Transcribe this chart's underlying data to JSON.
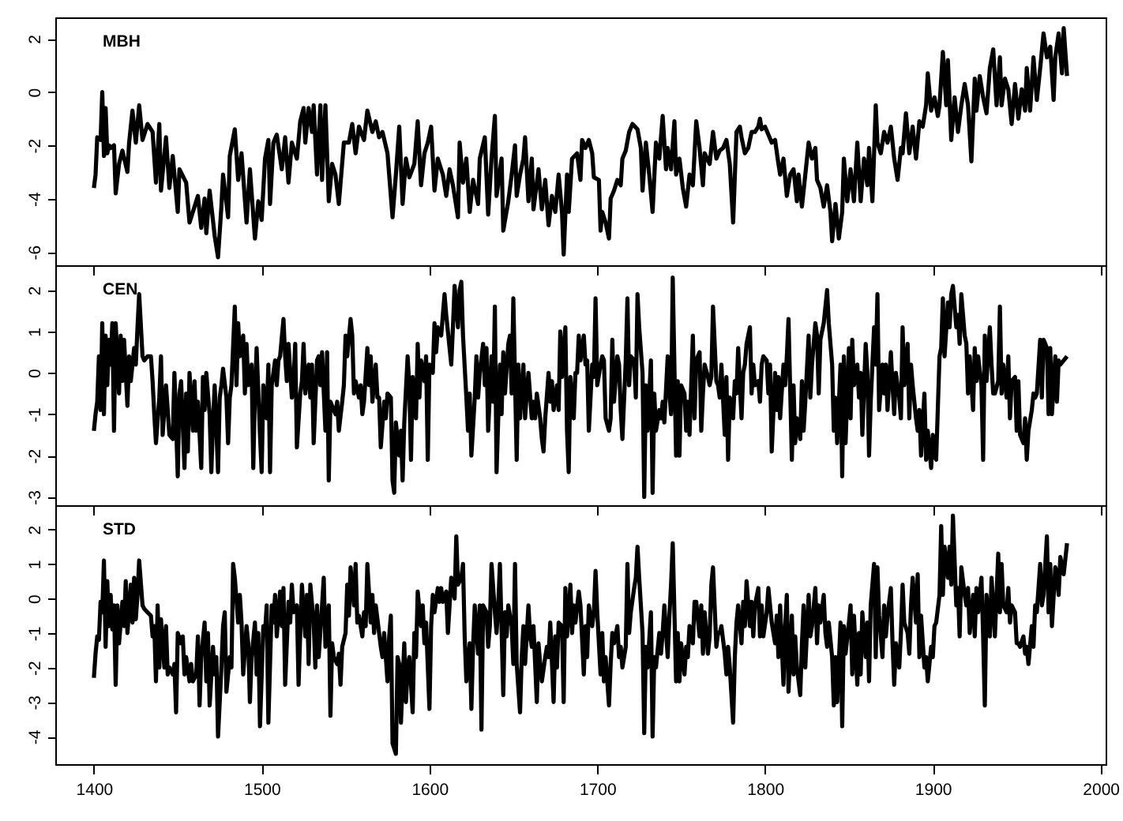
{
  "chart_data": [
    {
      "type": "line",
      "title": "MBH",
      "color": "#000000",
      "xlim": [
        1377,
        2003
      ],
      "xticks": [
        1400,
        1500,
        1600,
        1700,
        1800,
        1900,
        2000
      ],
      "ylim": [
        -6.5,
        2.8
      ],
      "yticks": [
        -6,
        -4,
        -2,
        0,
        2
      ],
      "tick_labels": "y",
      "x": [
        1400,
        1401,
        1402,
        1404,
        1405,
        1406,
        1407,
        1408,
        1409,
        1410,
        1412,
        1413,
        1415,
        1417,
        1420,
        1421,
        1423,
        1425,
        1427,
        1429,
        1432,
        1435,
        1437,
        1439,
        1440,
        1443,
        1445,
        1447,
        1450,
        1451,
        1455,
        1457,
        1459,
        1462,
        1464,
        1466,
        1467,
        1469,
        1472,
        1474,
        1476,
        1477,
        1480,
        1481,
        1484,
        1486,
        1488,
        1491,
        1493,
        1496,
        1498,
        1500,
        1502,
        1504,
        1505,
        1507,
        1509,
        1512,
        1514,
        1516,
        1518,
        1521,
        1523,
        1525,
        1526,
        1528,
        1530,
        1531,
        1533,
        1535,
        1536,
        1538,
        1540,
        1542,
        1544,
        1546,
        1549,
        1552,
        1554,
        1556,
        1558,
        1561,
        1563,
        1566,
        1568,
        1570,
        1572,
        1575,
        1578,
        1580,
        1582,
        1584,
        1586,
        1588,
        1591,
        1593,
        1595,
        1597,
        1599,
        1601,
        1603,
        1605,
        1608,
        1610,
        1612,
        1614,
        1617,
        1618,
        1620,
        1622,
        1624,
        1626,
        1629,
        1630,
        1633,
        1635,
        1637,
        1639,
        1640,
        1643,
        1644,
        1647,
        1649,
        1651,
        1652,
        1654,
        1656,
        1657,
        1659,
        1661,
        1662,
        1665,
        1667,
        1669,
        1671,
        1673,
        1675,
        1677,
        1679,
        1680,
        1682,
        1683,
        1685,
        1688,
        1690,
        1691,
        1693,
        1695,
        1697,
        1698,
        1701,
        1702,
        1703,
        1705,
        1707,
        1708,
        1710,
        1712,
        1714,
        1715,
        1717,
        1719,
        1721,
        1724,
        1726,
        1727,
        1729,
        1731,
        1733,
        1735,
        1737,
        1739,
        1741,
        1742,
        1744,
        1746,
        1747,
        1749,
        1751,
        1753,
        1755,
        1757,
        1759,
        1761,
        1763,
        1764,
        1767,
        1769,
        1771,
        1773,
        1775,
        1777,
        1779,
        1781,
        1783,
        1785,
        1786,
        1788,
        1790,
        1792,
        1794,
        1796,
        1797,
        1798,
        1800,
        1802,
        1804,
        1806,
        1808,
        1809,
        1811,
        1813,
        1815,
        1817,
        1819,
        1820,
        1822,
        1824,
        1826,
        1828,
        1830,
        1831,
        1833,
        1835,
        1837,
        1839,
        1840,
        1842,
        1844,
        1846,
        1847,
        1849,
        1851,
        1853,
        1855,
        1857,
        1859,
        1861,
        1862,
        1864,
        1866,
        1867,
        1869,
        1871,
        1873,
        1875,
        1877,
        1879,
        1881,
        1882,
        1884,
        1886,
        1888,
        1890,
        1892,
        1894,
        1896,
        1897,
        1899,
        1901,
        1903,
        1904,
        1906,
        1908,
        1909,
        1911,
        1913,
        1915,
        1917,
        1919,
        1921,
        1923,
        1925,
        1926,
        1928,
        1930,
        1932,
        1934,
        1936,
        1938,
        1940,
        1941,
        1943,
        1945,
        1947,
        1949,
        1951,
        1953,
        1955,
        1956,
        1958,
        1960,
        1962,
        1964,
        1966,
        1968,
        1970,
        1972,
        1973,
        1975,
        1977,
        1978,
        1980
      ],
      "values": [
        -3.6,
        -3.1,
        -1.7,
        -1.8,
        0.0,
        -2.4,
        -0.6,
        -2.3,
        -2.0,
        -2.1,
        -2.0,
        -3.8,
        -2.7,
        -2.2,
        -3.0,
        -1.9,
        -0.7,
        -1.9,
        -0.5,
        -1.8,
        -1.2,
        -1.5,
        -3.4,
        -1.2,
        -3.7,
        -1.7,
        -3.6,
        -2.4,
        -4.5,
        -2.9,
        -3.4,
        -4.9,
        -4.5,
        -3.9,
        -5.1,
        -4.0,
        -5.3,
        -3.7,
        -5.4,
        -6.2,
        -4.3,
        -3.1,
        -4.7,
        -2.4,
        -1.4,
        -3.3,
        -2.3,
        -4.9,
        -2.9,
        -5.5,
        -4.1,
        -4.8,
        -2.5,
        -1.8,
        -4.2,
        -1.9,
        -1.6,
        -2.9,
        -1.7,
        -3.4,
        -1.9,
        -2.5,
        -1.1,
        -0.6,
        -1.9,
        -0.6,
        -1.5,
        -0.5,
        -3.1,
        -0.5,
        -3.3,
        -0.5,
        -4.1,
        -2.7,
        -3.1,
        -4.2,
        -1.9,
        -1.9,
        -1.2,
        -2.3,
        -1.3,
        -1.8,
        -0.7,
        -1.5,
        -1.1,
        -1.7,
        -1.5,
        -2.3,
        -4.7,
        -3.1,
        -1.3,
        -4.2,
        -2.5,
        -3.2,
        -2.7,
        -1.1,
        -3.5,
        -2.3,
        -1.9,
        -1.3,
        -3.7,
        -2.5,
        -3.1,
        -3.9,
        -2.9,
        -3.5,
        -4.7,
        -1.9,
        -3.4,
        -2.5,
        -4.5,
        -3.3,
        -4.2,
        -2.5,
        -1.7,
        -4.6,
        -2.5,
        -0.9,
        -3.9,
        -2.5,
        -5.2,
        -4.1,
        -3.1,
        -2.0,
        -3.9,
        -3.1,
        -2.5,
        -1.7,
        -4.1,
        -2.5,
        -4.4,
        -2.9,
        -4.4,
        -3.3,
        -5.0,
        -3.9,
        -4.5,
        -3.1,
        -4.5,
        -6.1,
        -3.1,
        -4.5,
        -2.5,
        -2.3,
        -3.3,
        -1.8,
        -2.1,
        -1.8,
        -2.3,
        -3.2,
        -3.3,
        -5.2,
        -4.5,
        -4.9,
        -5.5,
        -4.0,
        -3.7,
        -3.3,
        -3.5,
        -2.5,
        -2.2,
        -1.5,
        -1.2,
        -1.4,
        -2.1,
        -3.7,
        -1.9,
        -3.1,
        -4.5,
        -1.9,
        -2.5,
        -0.9,
        -2.9,
        -2.1,
        -2.9,
        -1.1,
        -3.1,
        -2.5,
        -3.6,
        -4.3,
        -3.1,
        -3.5,
        -1.1,
        -2.1,
        -3.5,
        -2.3,
        -2.7,
        -1.5,
        -2.5,
        -2.2,
        -2.1,
        -1.8,
        -2.7,
        -4.9,
        -1.5,
        -1.3,
        -1.7,
        -2.3,
        -2.1,
        -1.5,
        -1.5,
        -1.3,
        -1.0,
        -1.4,
        -1.3,
        -1.6,
        -1.9,
        -1.8,
        -2.7,
        -3.1,
        -2.5,
        -3.9,
        -3.1,
        -2.9,
        -4.1,
        -3.1,
        -4.3,
        -3.1,
        -1.9,
        -2.5,
        -2.1,
        -3.3,
        -3.6,
        -4.3,
        -3.5,
        -4.5,
        -5.6,
        -4.2,
        -5.5,
        -4.5,
        -2.5,
        -4.1,
        -2.9,
        -4.1,
        -1.9,
        -4.1,
        -2.5,
        -3.5,
        -2.1,
        -4.1,
        -0.5,
        -1.9,
        -2.3,
        -1.5,
        -1.9,
        -1.3,
        -2.5,
        -3.3,
        -2.1,
        -2.3,
        -0.8,
        -2.3,
        -1.3,
        -2.5,
        -1.1,
        -1.3,
        -0.5,
        0.7,
        -0.7,
        -0.2,
        -0.9,
        -0.5,
        1.5,
        -0.5,
        1.2,
        -1.8,
        -0.2,
        -1.5,
        -0.5,
        0.3,
        -0.5,
        -2.6,
        0.5,
        -0.7,
        0.6,
        -0.2,
        -0.8,
        0.9,
        1.6,
        -0.5,
        1.3,
        -0.5,
        0.5,
        0.1,
        -1.2,
        0.3,
        -1.0,
        0.1,
        -0.7,
        0.9,
        -0.7,
        1.3,
        -0.3,
        0.9,
        2.2,
        1.3,
        1.7,
        -0.3,
        1.3,
        2.2,
        0.7,
        2.4,
        0.6
      ]
    },
    {
      "type": "line",
      "title": "CEN",
      "color": "#000000",
      "xlim": [
        1377,
        2003
      ],
      "xticks": [
        1400,
        1500,
        1600,
        1700,
        1800,
        1900,
        2000
      ],
      "ylim": [
        -3.2,
        2.6
      ],
      "yticks": [
        -3,
        -2,
        -1,
        0,
        1,
        2
      ],
      "tick_labels": "y",
      "x": [
        1400,
        1401,
        1402,
        1403,
        1404,
        1405,
        1406,
        1407,
        1408,
        1409,
        1410,
        1411,
        1412,
        1413,
        1415,
        1416,
        1417,
        1418,
        1420,
        1421,
        1422,
        1424,
        1425,
        1426,
        1427,
        1429,
        1430,
        1432,
        1434,
        1435,
        1436,
        1437,
        1439,
        1440,
        1441,
        1443,
        1445,
        1447,
        1448,
        1450,
        1451,
        1452,
        1454,
        1455,
        1456,
        1457,
        1459,
        1460,
        1461,
        1462,
        1464,
        1465,
        1466,
        1467,
        1469,
        1470,
        1471,
        1472,
        1474,
        1475,
        1476,
        1477,
        1479,
        1480,
        1481,
        1482,
        1484,
        1485,
        1486,
        1487,
        1489,
        1490,
        1491,
        1492,
        1494,
        1495,
        1496,
        1497,
        1499,
        1500,
        1501,
        1503,
        1504,
        1505,
        1506,
        1508,
        1509,
        1510,
        1511,
        1513,
        1514,
        1515,
        1516,
        1518,
        1519,
        1520,
        1521,
        1523,
        1524,
        1525,
        1526,
        1528,
        1529,
        1530,
        1531,
        1533,
        1534,
        1535,
        1536,
        1538,
        1539,
        1540,
        1541,
        1543,
        1544,
        1545,
        1546,
        1548,
        1549,
        1550,
        1551,
        1553,
        1554,
        1555,
        1556,
        1558,
        1559,
        1560,
        1561,
        1563,
        1564,
        1565,
        1566,
        1568,
        1569,
        1570,
        1571,
        1573,
        1574,
        1575,
        1577,
        1578,
        1579,
        1580,
        1582,
        1583,
        1584,
        1585,
        1587,
        1588,
        1589,
        1590,
        1592,
        1593,
        1594,
        1595,
        1597,
        1598,
        1599,
        1600,
        1602,
        1603,
        1604,
        1605,
        1607,
        1608,
        1609,
        1610,
        1612,
        1613,
        1614,
        1615,
        1617,
        1618,
        1619,
        1620,
        1622,
        1623,
        1624,
        1625,
        1627,
        1628,
        1629,
        1630,
        1632,
        1633,
        1634,
        1635,
        1637,
        1638,
        1639,
        1640,
        1642,
        1643,
        1644,
        1645,
        1647,
        1648,
        1649,
        1650,
        1652,
        1653,
        1654,
        1656,
        1657,
        1658,
        1659,
        1661,
        1662,
        1663,
        1664,
        1666,
        1667,
        1668,
        1669,
        1671,
        1672,
        1673,
        1674,
        1676,
        1677,
        1678,
        1679,
        1681,
        1682,
        1683,
        1684,
        1686,
        1687,
        1688,
        1689,
        1690,
        1692,
        1693,
        1694,
        1695,
        1697,
        1698,
        1699,
        1700,
        1702,
        1703,
        1704,
        1705,
        1707,
        1708,
        1709,
        1710,
        1712,
        1713,
        1714,
        1715,
        1717,
        1718,
        1719,
        1720,
        1722,
        1723,
        1724,
        1725,
        1727,
        1728,
        1729,
        1730,
        1732,
        1733,
        1734,
        1735,
        1737,
        1738,
        1739,
        1740,
        1742,
        1743,
        1744,
        1745,
        1747,
        1748,
        1749,
        1750,
        1752,
        1753,
        1754,
        1755,
        1757,
        1758,
        1759,
        1761,
        1762,
        1763,
        1764,
        1766,
        1767,
        1768,
        1769,
        1771,
        1772,
        1773,
        1774,
        1776,
        1777,
        1778,
        1779,
        1781,
        1782,
        1783,
        1784,
        1786,
        1787,
        1788,
        1789,
        1791,
        1792,
        1793,
        1794,
        1796,
        1797,
        1798,
        1799,
        1801,
        1802,
        1803,
        1804,
        1806,
        1807,
        1808,
        1809,
        1811,
        1812,
        1813,
        1814,
        1816,
        1817,
        1818,
        1819,
        1821,
        1822,
        1823,
        1824,
        1826,
        1827,
        1828,
        1830,
        1831,
        1832,
        1833,
        1835,
        1836,
        1837,
        1838,
        1840,
        1841,
        1842,
        1843,
        1845,
        1846,
        1847,
        1848,
        1850,
        1851,
        1852,
        1853,
        1855,
        1856,
        1857,
        1858,
        1860,
        1861,
        1862,
        1863,
        1865,
        1866,
        1867,
        1868,
        1870,
        1871,
        1872,
        1873,
        1875,
        1876,
        1877,
        1878,
        1880,
        1881,
        1882,
        1883,
        1885,
        1886,
        1887,
        1888,
        1890,
        1891,
        1892,
        1893,
        1895,
        1896,
        1897,
        1899,
        1900,
        1901,
        1902,
        1904,
        1905,
        1906,
        1907,
        1909,
        1910,
        1911,
        1912,
        1914,
        1915,
        1916,
        1917,
        1919,
        1920,
        1921,
        1922,
        1924,
        1925,
        1926,
        1927,
        1929,
        1930,
        1931,
        1932,
        1934,
        1935,
        1936,
        1937,
        1939,
        1940,
        1941,
        1942,
        1944,
        1945,
        1946,
        1947,
        1949,
        1950,
        1951,
        1952,
        1954,
        1955,
        1956,
        1957,
        1959,
        1960,
        1961,
        1962,
        1964,
        1965,
        1966,
        1968,
        1969,
        1970,
        1971,
        1973,
        1974,
        1975,
        1976,
        1978,
        1980
      ],
      "values": [
        -1.4,
        -1.0,
        -0.7,
        0.4,
        -0.9,
        1.2,
        -1.0,
        0.9,
        -0.3,
        0.8,
        0.2,
        1.2,
        -1.4,
        1.2,
        -0.5,
        0.9,
        -0.2,
        0.8,
        -0.8,
        0.4,
        -0.2,
        0.6,
        0.2,
        1.1,
        1.9,
        0.4,
        0.3,
        0.4,
        0.4,
        -0.2,
        -1.0,
        -1.7,
        -0.6,
        0.4,
        -1.5,
        -0.3,
        -1.5,
        -1.6,
        0.0,
        -2.5,
        -0.5,
        -0.2,
        -2.3,
        -0.5,
        -1.9,
        0.0,
        -1.4,
        -0.2,
        -1.4,
        -0.7,
        -2.3,
        -0.1,
        -0.9,
        0.0,
        -1.0,
        -2.4,
        -1.2,
        -0.3,
        -2.4,
        -0.6,
        -0.3,
        0.1,
        -0.6,
        -1.7,
        -0.6,
        -0.3,
        1.6,
        -0.3,
        1.2,
        0.4,
        0.9,
        -0.5,
        0.7,
        -0.3,
        0.2,
        -2.3,
        -0.5,
        0.6,
        -1.5,
        -2.4,
        -0.3,
        -1.1,
        0.2,
        -2.4,
        -0.3,
        0.3,
        -0.3,
        0.3,
        0.4,
        1.3,
        0.4,
        -0.2,
        0.7,
        -0.6,
        -0.2,
        0.7,
        -1.8,
        -0.5,
        -0.2,
        0.7,
        -0.5,
        0.2,
        -0.6,
        0.2,
        -1.7,
        0.3,
        0.4,
        -0.3,
        0.5,
        -1.4,
        0.5,
        -2.6,
        -0.7,
        -0.9,
        -1.0,
        -0.7,
        -1.4,
        -0.7,
        -0.3,
        0.9,
        0.4,
        1.3,
        0.9,
        -0.5,
        -0.2,
        -0.6,
        -0.3,
        -1.0,
        -0.7,
        0.6,
        -0.3,
        0.4,
        -0.7,
        0.2,
        -0.6,
        -0.6,
        -1.8,
        -0.7,
        -1.1,
        -0.5,
        -0.6,
        -2.6,
        -2.9,
        -1.2,
        -2.0,
        -1.4,
        -2.6,
        -1.2,
        0.4,
        -0.3,
        -2.1,
        -0.1,
        -1.1,
        0.7,
        -0.6,
        0.3,
        -0.2,
        0.4,
        -2.1,
        0.2,
        0.0,
        1.2,
        0.5,
        1.1,
        0.9,
        1.4,
        1.9,
        1.4,
        0.6,
        0.2,
        1.1,
        2.1,
        1.1,
        2.0,
        2.2,
        0.9,
        -0.6,
        -1.4,
        -0.5,
        -2.0,
        -0.6,
        0.4,
        -0.6,
        0.0,
        0.7,
        -0.3,
        0.6,
        -1.4,
        0.4,
        -0.7,
        1.6,
        -2.4,
        0.2,
        -1.0,
        0.5,
        -0.5,
        0.7,
        0.9,
        -0.5,
        1.8,
        -2.1,
        0.2,
        -1.1,
        0.2,
        -1.1,
        -0.5,
        0.0,
        -1.1,
        -0.7,
        -1.1,
        -0.5,
        -1.1,
        -1.6,
        -1.9,
        -1.1,
        0.0,
        -0.7,
        -0.2,
        -0.9,
        -0.3,
        -0.9,
        1.0,
        -0.1,
        1.1,
        -1.4,
        -2.4,
        -0.1,
        -1.1,
        0.0,
        0.0,
        0.9,
        0.3,
        0.9,
        0.2,
        0.3,
        -1.4,
        0.2,
        -0.1,
        1.8,
        -0.3,
        0.2,
        0.4,
        0.3,
        -1.1,
        -1.4,
        -1.1,
        0.8,
        -0.7,
        0.4,
        0.2,
        -0.9,
        -1.6,
        0.3,
        1.8,
        -0.3,
        0.4,
        0.3,
        -0.6,
        1.9,
        1.1,
        0.0,
        -3.0,
        -0.3,
        -1.4,
        0.3,
        -2.9,
        -0.5,
        -1.4,
        -0.9,
        -1.1,
        -0.7,
        -1.2,
        0.4,
        -0.5,
        -1.0,
        2.3,
        -2.0,
        -0.2,
        -2.0,
        -0.3,
        -0.5,
        -1.4,
        -0.7,
        -1.5,
        0.9,
        -1.1,
        0.3,
        0.5,
        -1.4,
        -0.5,
        0.2,
        -0.1,
        -0.3,
        -0.1,
        1.6,
        -0.2,
        -0.3,
        -0.6,
        0.2,
        -1.5,
        -0.1,
        -2.1,
        -0.6,
        -1.1,
        -0.2,
        -0.5,
        0.6,
        -1.1,
        0.0,
        0.2,
        0.7,
        1.1,
        -0.5,
        0.2,
        -0.3,
        -0.2,
        -0.7,
        0.2,
        0.4,
        0.3,
        -0.5,
        0.2,
        -1.9,
        0.0,
        -0.9,
        -0.1,
        -1.1,
        0.2,
        -0.3,
        0.4,
        1.3,
        -2.1,
        -0.3,
        -1.7,
        -1.1,
        -1.6,
        -0.2,
        -1.4,
        -0.7,
        0.9,
        -0.6,
        0.2,
        1.2,
        0.9,
        -0.5,
        0.8,
        1.2,
        1.6,
        2.0,
        1.2,
        0.2,
        -1.4,
        -0.6,
        -1.7,
        0.2,
        -2.5,
        0.4,
        -1.7,
        0.6,
        -1.1,
        0.8,
        -0.3,
        0.2,
        -0.6,
        0.0,
        -1.5,
        0.7,
        0.0,
        -2.0,
        -0.7,
        1.1,
        0.2,
        1.9,
        -0.9,
        0.2,
        -0.5,
        0.2,
        -0.9,
        0.5,
        -0.3,
        -1.0,
        0.0,
        -0.6,
        -1.1,
        1.1,
        -0.3,
        0.7,
        -1.1,
        0.2,
        -0.3,
        -1.1,
        -1.4,
        -0.9,
        -2.0,
        -0.5,
        -2.1,
        -1.4,
        -2.3,
        -1.5,
        -2.0,
        -2.1,
        0.4,
        0.6,
        1.8,
        0.4,
        1.7,
        1.1,
        1.9,
        2.1,
        1.1,
        1.4,
        0.7,
        1.9,
        0.9,
        0.7,
        -0.5,
        0.4,
        -0.9,
        0.6,
        -0.2,
        0.4,
        -0.3,
        -2.1,
        0.9,
        -0.2,
        1.1,
        0.2,
        -0.5,
        -0.5,
        -0.2,
        1.6,
        -0.5,
        0.2,
        -0.6,
        0.4,
        -1.1,
        -0.2,
        -0.1,
        -1.4,
        -0.2,
        -1.5,
        -1.7,
        -1.1,
        -2.1,
        -1.4,
        -0.9,
        -0.5,
        -0.6,
        -0.5,
        0.8,
        -0.6,
        0.8,
        0.6,
        -1.0,
        0.6,
        -1.0,
        0.4,
        -0.7,
        0.3,
        0.2,
        0.3,
        0.4
      ]
    },
    {
      "type": "line",
      "title": "STD",
      "color": "#000000",
      "xlim": [
        1377,
        2003
      ],
      "xticks": [
        1400,
        1500,
        1600,
        1700,
        1800,
        1900,
        2000
      ],
      "ylim": [
        -4.8,
        2.7
      ],
      "yticks": [
        -4,
        -3,
        -2,
        -1,
        0,
        1,
        2
      ],
      "x": [
        1400,
        1401,
        1402,
        1403,
        1404,
        1405,
        1406,
        1407,
        1408,
        1409,
        1410,
        1411,
        1412,
        1413,
        1414,
        1415,
        1417,
        1418,
        1419,
        1420,
        1422,
        1423,
        1424,
        1425,
        1426,
        1427,
        1429,
        1430,
        1432,
        1434,
        1435,
        1436,
        1437,
        1438,
        1439,
        1440,
        1442,
        1443,
        1444,
        1445,
        1447,
        1448,
        1449,
        1450,
        1452,
        1453,
        1454,
        1455,
        1457,
        1458,
        1459,
        1461,
        1462,
        1463,
        1464,
        1466,
        1467,
        1468,
        1469,
        1471,
        1472,
        1473,
        1474,
        1476,
        1477,
        1478,
        1479,
        1481,
        1482,
        1483,
        1484,
        1486,
        1487,
        1488,
        1489,
        1491,
        1492,
        1493,
        1494,
        1496,
        1497,
        1498,
        1499,
        1501,
        1502,
        1503,
        1504,
        1506,
        1507,
        1508,
        1509,
        1511,
        1512,
        1513,
        1514,
        1516,
        1517,
        1518,
        1519,
        1521,
        1522,
        1523,
        1524,
        1526,
        1527,
        1528,
        1529,
        1531,
        1532,
        1533,
        1534,
        1536,
        1537,
        1538,
        1540,
        1541,
        1542,
        1543,
        1545,
        1546,
        1547,
        1548,
        1550,
        1551,
        1552,
        1553,
        1555,
        1556,
        1557,
        1558,
        1560,
        1561,
        1562,
        1563,
        1565,
        1566,
        1567,
        1568,
        1570,
        1571,
        1572,
        1573,
        1575,
        1576,
        1577,
        1578,
        1580,
        1581,
        1582,
        1583,
        1585,
        1586,
        1587,
        1588,
        1590,
        1591,
        1592,
        1593,
        1595,
        1596,
        1597,
        1598,
        1600,
        1601,
        1602,
        1603,
        1605,
        1606,
        1607,
        1608,
        1610,
        1611,
        1612,
        1613,
        1615,
        1616,
        1617,
        1619,
        1620,
        1621,
        1622,
        1624,
        1625,
        1626,
        1627,
        1629,
        1630,
        1631,
        1632,
        1634,
        1635,
        1636,
        1637,
        1639,
        1640,
        1641,
        1642,
        1644,
        1645,
        1646,
        1647,
        1649,
        1650,
        1651,
        1652,
        1654,
        1655,
        1656,
        1657,
        1659,
        1660,
        1661,
        1662,
        1664,
        1665,
        1666,
        1667,
        1669,
        1670,
        1671,
        1672,
        1674,
        1675,
        1676,
        1677,
        1679,
        1680,
        1681,
        1682,
        1684,
        1685,
        1686,
        1687,
        1689,
        1690,
        1692,
        1693,
        1694,
        1695,
        1697,
        1698,
        1699,
        1700,
        1702,
        1703,
        1704,
        1705,
        1707,
        1708,
        1709,
        1710,
        1712,
        1713,
        1714,
        1715,
        1717,
        1718,
        1719,
        1720,
        1722,
        1723,
        1724,
        1725,
        1727,
        1728,
        1729,
        1730,
        1732,
        1733,
        1734,
        1735,
        1737,
        1738,
        1739,
        1740,
        1742,
        1743,
        1744,
        1745,
        1747,
        1748,
        1749,
        1750,
        1752,
        1753,
        1754,
        1755,
        1757,
        1758,
        1759,
        1761,
        1762,
        1763,
        1764,
        1766,
        1767,
        1768,
        1769,
        1771,
        1772,
        1773,
        1774,
        1776,
        1777,
        1778,
        1779,
        1781,
        1782,
        1783,
        1784,
        1786,
        1787,
        1788,
        1789,
        1791,
        1792,
        1793,
        1794,
        1796,
        1797,
        1798,
        1799,
        1801,
        1802,
        1803,
        1804,
        1806,
        1807,
        1808,
        1809,
        1811,
        1812,
        1813,
        1814,
        1816,
        1817,
        1818,
        1819,
        1821,
        1822,
        1823,
        1824,
        1826,
        1827,
        1828,
        1830,
        1831,
        1832,
        1833,
        1835,
        1836,
        1837,
        1838,
        1840,
        1841,
        1842,
        1843,
        1845,
        1846,
        1847,
        1848,
        1850,
        1851,
        1852,
        1853,
        1855,
        1856,
        1857,
        1858,
        1860,
        1861,
        1862,
        1863,
        1865,
        1866,
        1867,
        1868,
        1870,
        1871,
        1872,
        1873,
        1875,
        1876,
        1877,
        1878,
        1880,
        1881,
        1882,
        1883,
        1885,
        1886,
        1887,
        1888,
        1890,
        1891,
        1892,
        1893,
        1895,
        1896,
        1897,
        1899,
        1900,
        1901,
        1902,
        1904,
        1905,
        1906,
        1907,
        1909,
        1910,
        1911,
        1912,
        1914,
        1915,
        1916,
        1917,
        1919,
        1920,
        1921,
        1922,
        1924,
        1925,
        1926,
        1927,
        1929,
        1930,
        1931,
        1932,
        1934,
        1935,
        1936,
        1937,
        1939,
        1940,
        1941,
        1942,
        1944,
        1945,
        1946,
        1947,
        1949,
        1950,
        1951,
        1952,
        1954,
        1955,
        1956,
        1957,
        1959,
        1960,
        1961,
        1962,
        1964,
        1965,
        1966,
        1968,
        1969,
        1970,
        1971,
        1973,
        1974,
        1975,
        1976,
        1978,
        1980
      ],
      "values": [
        -2.3,
        -1.6,
        -1.1,
        -1.2,
        -0.1,
        -0.4,
        1.1,
        -1.4,
        0.5,
        -0.8,
        0.1,
        -0.9,
        -0.2,
        -2.5,
        -0.2,
        -1.3,
        -0.1,
        -0.8,
        0.5,
        -1.0,
        0.4,
        -0.7,
        0.6,
        -0.6,
        0.1,
        1.1,
        -0.2,
        -0.3,
        -0.4,
        -0.5,
        -1.1,
        -0.8,
        -2.4,
        -0.2,
        -2.0,
        -0.6,
        -2.0,
        -0.8,
        -2.2,
        -2.0,
        -2.2,
        -1.9,
        -3.3,
        -1.0,
        -1.3,
        -1.1,
        -2.2,
        -1.7,
        -2.4,
        -1.9,
        -2.4,
        -2.2,
        -1.1,
        -3.1,
        -1.7,
        -0.7,
        -2.4,
        -1.0,
        -3.1,
        -1.4,
        -2.2,
        -1.7,
        -4.0,
        -2.0,
        -0.8,
        -0.4,
        -2.7,
        -1.7,
        -2.0,
        1.0,
        0.6,
        -0.7,
        0.1,
        -0.7,
        -2.2,
        -0.8,
        -1.3,
        -3.0,
        -1.7,
        -0.7,
        -2.2,
        -1.0,
        -3.7,
        -0.8,
        -1.0,
        -0.2,
        -3.6,
        -0.2,
        -0.7,
        0.1,
        -1.1,
        0.2,
        -0.8,
        0.3,
        -2.5,
        -0.1,
        -0.7,
        0.4,
        -0.4,
        -0.2,
        -2.5,
        -1.0,
        0.4,
        -1.1,
        0.1,
        -1.9,
        0.4,
        -0.7,
        -2.0,
        -0.2,
        -1.7,
        -0.2,
        0.6,
        -1.4,
        -0.2,
        -3.4,
        -1.3,
        -1.7,
        -1.9,
        -1.6,
        -2.5,
        -1.4,
        -1.0,
        0.4,
        -0.5,
        0.9,
        -0.2,
        1.0,
        -0.7,
        -0.5,
        -1.1,
        -0.4,
        -0.8,
        1.0,
        -0.7,
        0.1,
        -1.0,
        -0.2,
        -1.0,
        -1.4,
        -1.7,
        -1.0,
        -2.4,
        -1.1,
        -0.5,
        -4.2,
        -4.5,
        -1.7,
        -1.9,
        -3.6,
        -1.3,
        -3.0,
        -2.0,
        -1.7,
        -3.3,
        -1.0,
        -1.7,
        0.2,
        -0.8,
        -0.2,
        -1.3,
        -0.7,
        -3.2,
        -0.8,
        0.1,
        -0.4,
        0.3,
        -0.1,
        0.3,
        -0.1,
        0.2,
        -1.0,
        -0.2,
        0.6,
        0.0,
        1.8,
        0.4,
        0.6,
        1.0,
        -1.1,
        -2.4,
        -1.3,
        -3.2,
        -1.4,
        -0.2,
        -1.6,
        -0.2,
        -3.8,
        -0.2,
        -0.4,
        -1.4,
        -0.8,
        1.0,
        -0.4,
        -1.0,
        -0.2,
        1.0,
        -2.8,
        -0.4,
        -1.1,
        -0.2,
        -0.8,
        -1.9,
        1.0,
        -1.9,
        -3.3,
        -1.7,
        -0.8,
        -1.9,
        -0.2,
        -1.1,
        -1.4,
        -0.8,
        -3.0,
        -1.3,
        -1.9,
        -2.4,
        -1.7,
        -1.4,
        -1.7,
        -0.7,
        -3.0,
        -1.1,
        -2.0,
        -0.7,
        -0.8,
        -3.0,
        0.3,
        -1.1,
        0.4,
        -1.0,
        -0.2,
        -0.7,
        0.2,
        -0.2,
        -2.2,
        -0.8,
        -1.7,
        -0.2,
        -0.8,
        -0.4,
        0.8,
        -0.4,
        -2.2,
        -1.0,
        -2.4,
        -1.7,
        -3.1,
        -1.9,
        -1.0,
        -1.3,
        -0.8,
        -1.7,
        -1.4,
        -2.0,
        -1.4,
        1.0,
        -1.0,
        -0.4,
        0.3,
        0.6,
        1.5,
        0.6,
        -1.0,
        -3.9,
        -1.4,
        -2.0,
        -0.4,
        -4.0,
        -1.7,
        -2.0,
        -1.0,
        -1.6,
        -1.0,
        -0.2,
        -1.7,
        -0.5,
        0.4,
        1.6,
        -2.4,
        -1.0,
        -2.4,
        -1.3,
        -2.2,
        -1.4,
        -1.7,
        -0.8,
        -1.3,
        -0.1,
        -0.1,
        -1.1,
        -0.2,
        -1.6,
        -0.4,
        -1.6,
        -1.1,
        0.4,
        0.9,
        -1.4,
        -1.0,
        -1.0,
        -0.8,
        -1.6,
        -2.2,
        -1.4,
        -2.0,
        -3.6,
        -1.7,
        -0.7,
        -0.2,
        -1.3,
        -0.1,
        -0.8,
        0.5,
        -0.8,
        -0.1,
        -1.1,
        -0.2,
        0.3,
        -1.1,
        -0.2,
        -1.1,
        -0.4,
        0.3,
        -0.2,
        -0.7,
        -1.3,
        -0.5,
        -1.7,
        -0.2,
        -2.5,
        -0.8,
        0.1,
        -2.7,
        -0.5,
        -2.2,
        -1.1,
        -2.0,
        -2.8,
        -1.3,
        -0.2,
        -2.0,
        0.1,
        -1.1,
        -0.8,
        0.3,
        -1.3,
        -0.2,
        -0.7,
        0.1,
        -1.0,
        -1.4,
        -0.7,
        -1.7,
        -3.1,
        -1.7,
        -3.0,
        -0.7,
        -3.7,
        -0.8,
        -1.6,
        -0.7,
        -0.2,
        -2.2,
        -0.5,
        -2.5,
        -1.0,
        -2.2,
        -0.4,
        -1.7,
        -0.7,
        -2.4,
        -0.2,
        1.0,
        -1.7,
        0.9,
        -0.5,
        -1.7,
        -0.2,
        -1.1,
        -0.5,
        0.3,
        -1.3,
        -2.5,
        -1.3,
        -2.0,
        -1.0,
        0.4,
        -0.7,
        -1.0,
        -1.6,
        -0.2,
        0.6,
        -0.7,
        0.7,
        -1.7,
        -0.5,
        -2.0,
        -1.7,
        -2.4,
        -1.4,
        -1.7,
        -0.8,
        -0.7,
        0.1,
        2.1,
        0.1,
        1.5,
        0.6,
        1.5,
        0.4,
        2.4,
        -0.2,
        0.3,
        -1.1,
        0.9,
        0.1,
        -0.2,
        0.3,
        -1.0,
        0.1,
        -1.1,
        0.3,
        -0.4,
        0.6,
        -1.1,
        -3.1,
        0.1,
        -1.1,
        0.6,
        -0.2,
        -1.1,
        1.3,
        -0.4,
        1.0,
        -0.2,
        -0.4,
        0.3,
        -0.7,
        -0.2,
        -0.4,
        -1.3,
        -1.3,
        -1.4,
        -1.1,
        -1.6,
        -1.4,
        -1.9,
        -0.8,
        -1.4,
        -0.2,
        -0.4,
        1.0,
        -0.2,
        0.1,
        1.8,
        -0.4,
        1.0,
        -0.8,
        0.9,
        0.7,
        0.1,
        1.2,
        0.7,
        1.6
      ]
    }
  ]
}
